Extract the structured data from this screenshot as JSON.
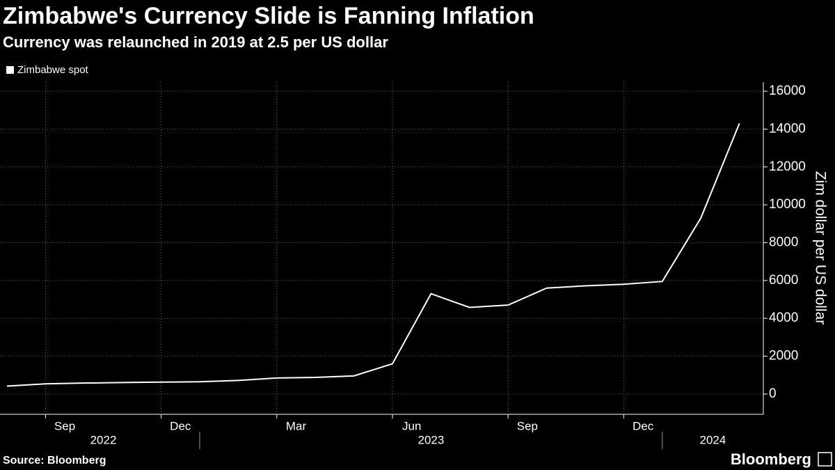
{
  "chart_data": {
    "type": "line",
    "title": "Zimbabwe's Currency Slide is Fanning Inflation",
    "subtitle": "Currency was relaunched in 2019 at 2.5 per US dollar",
    "y_label": "Zim dollar per US dollar",
    "source": "Source: Bloomberg",
    "brand": "Bloomberg",
    "x": [
      "2022-08",
      "2022-09",
      "2022-10",
      "2022-11",
      "2022-12",
      "2023-01",
      "2023-02",
      "2023-03",
      "2023-04",
      "2023-05",
      "2023-06",
      "2023-07",
      "2023-08",
      "2023-09",
      "2023-10",
      "2023-11",
      "2023-12",
      "2024-01",
      "2024-02",
      "2024-03"
    ],
    "series": [
      {
        "name": "Zimbabwe spot",
        "color": "#ffffff",
        "values": [
          420,
          540,
          580,
          610,
          630,
          650,
          720,
          850,
          880,
          960,
          1600,
          5300,
          4580,
          4700,
          5600,
          5720,
          5800,
          5950,
          9300,
          14300
        ]
      }
    ],
    "xticks": [
      {
        "value": "2022-09",
        "label": "Sep"
      },
      {
        "value": "2022-12",
        "label": "Dec"
      },
      {
        "value": "2023-03",
        "label": "Mar"
      },
      {
        "value": "2023-06",
        "label": "Jun"
      },
      {
        "value": "2023-09",
        "label": "Sep"
      },
      {
        "value": "2023-12",
        "label": "Dec"
      }
    ],
    "x_years": [
      "2022",
      "2023",
      "2024"
    ],
    "ylim": [
      -1070,
      16480
    ],
    "yticks": [
      0,
      2000,
      4000,
      6000,
      8000,
      10000,
      12000,
      14000,
      16000
    ],
    "y_axis_side": "right",
    "grid": true
  }
}
